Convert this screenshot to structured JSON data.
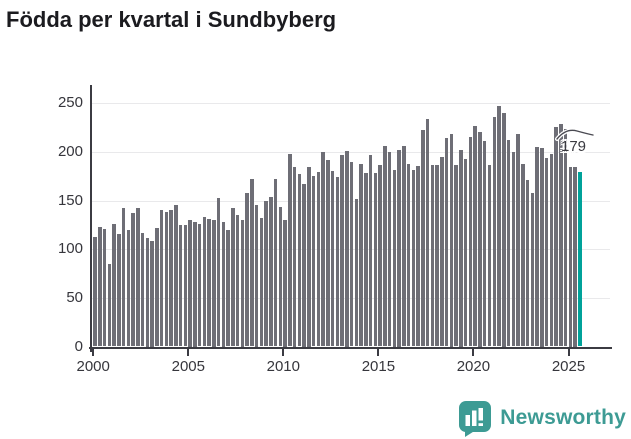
{
  "title": "Födda per kvartal i Sundbyberg",
  "chart_data": {
    "type": "bar",
    "title": "Födda per kvartal i Sundbyberg",
    "frequency": "quarterly",
    "x_start": "2000-Q1",
    "x_end": "2025-Q3",
    "values": [
      113,
      123,
      121,
      85,
      126,
      116,
      142,
      120,
      137,
      142,
      117,
      112,
      109,
      122,
      140,
      138,
      140,
      145,
      125,
      125,
      130,
      128,
      126,
      133,
      131,
      130,
      153,
      128,
      120,
      142,
      135,
      130,
      158,
      172,
      146,
      132,
      150,
      154,
      172,
      143,
      130,
      198,
      185,
      177,
      167,
      185,
      175,
      179,
      200,
      192,
      180,
      174,
      197,
      201,
      190,
      152,
      188,
      178,
      197,
      178,
      187,
      206,
      200,
      182,
      202,
      206,
      188,
      181,
      186,
      223,
      234,
      187,
      187,
      195,
      214,
      219,
      187,
      202,
      193,
      215,
      227,
      221,
      211,
      187,
      236,
      247,
      240,
      212,
      200,
      218,
      188,
      171,
      158,
      205,
      204,
      194,
      198,
      226,
      229,
      224,
      185,
      185,
      179
    ],
    "highlight_index": 102,
    "highlight_label": "179",
    "y_ticks": [
      0,
      50,
      100,
      150,
      200,
      250
    ],
    "x_tick_labels": [
      "2000",
      "2005",
      "2010",
      "2015",
      "2020",
      "2025"
    ],
    "ylim": [
      0,
      260
    ],
    "grid": true,
    "legend_position": "none",
    "xlabel": "",
    "ylabel": "",
    "bar_color": "#6e6e76",
    "highlight_color": "#00a29a"
  },
  "annotation": {
    "label": "179"
  },
  "footer": {
    "brand": "Newsworthy",
    "brand_color": "#3d9b94"
  },
  "colors": {
    "background": "#ffffff",
    "title_text": "#1b1b1f",
    "axis": "#3b3b42",
    "gridline": "#e9e9eb",
    "tick_text": "#36363c"
  }
}
